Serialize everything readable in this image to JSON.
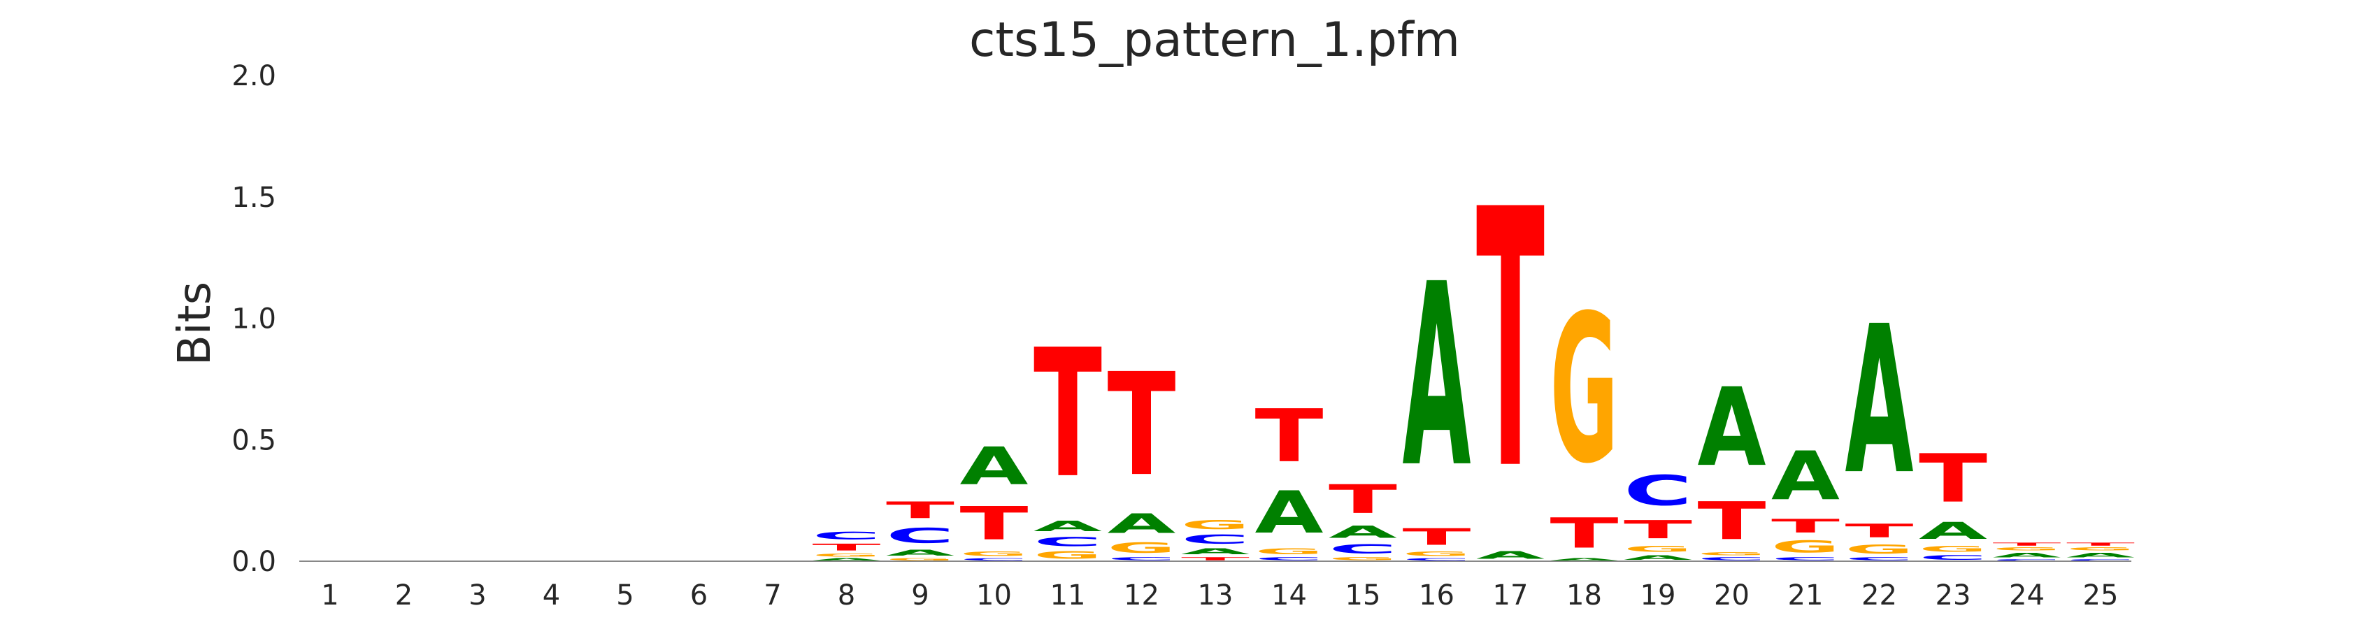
{
  "colors": {
    "A": "#008000",
    "C": "#0000ff",
    "G": "#ffa500",
    "T": "#ff0000",
    "baseline": "#888888",
    "text": "#262626"
  },
  "chart_data": {
    "type": "sequence-logo",
    "title": "cts15_pattern_1.pfm",
    "xlabel": "",
    "ylabel": "Bits",
    "ylim": [
      0,
      2.0
    ],
    "yticks": [
      "0.0",
      "0.5",
      "1.0",
      "1.5",
      "2.0"
    ],
    "grid": false,
    "legend": "none",
    "positions": [
      {
        "label": "1",
        "stack": []
      },
      {
        "label": "2",
        "stack": []
      },
      {
        "label": "3",
        "stack": []
      },
      {
        "label": "4",
        "stack": []
      },
      {
        "label": "5",
        "stack": []
      },
      {
        "label": "6",
        "stack": []
      },
      {
        "label": "7",
        "stack": []
      },
      {
        "label": "8",
        "stack": [
          {
            "base": "A",
            "bits": 0.015
          },
          {
            "base": "G",
            "bits": 0.02
          },
          {
            "base": "T",
            "bits": 0.045
          },
          {
            "base": "C",
            "bits": 0.05
          }
        ]
      },
      {
        "label": "9",
        "stack": [
          {
            "base": "G",
            "bits": 0.015
          },
          {
            "base": "A",
            "bits": 0.04
          },
          {
            "base": "C",
            "bits": 0.1
          },
          {
            "base": "T",
            "bits": 0.11
          }
        ]
      },
      {
        "label": "10",
        "stack": [
          {
            "base": "C",
            "bits": 0.015
          },
          {
            "base": "G",
            "bits": 0.03
          },
          {
            "base": "T",
            "bits": 0.22
          },
          {
            "base": "A",
            "bits": 0.25
          }
        ]
      },
      {
        "label": "11",
        "stack": [
          {
            "base": "G",
            "bits": 0.05
          },
          {
            "base": "C",
            "bits": 0.06
          },
          {
            "base": "A",
            "bits": 0.07
          },
          {
            "base": "T",
            "bits": 0.85
          }
        ]
      },
      {
        "label": "12",
        "stack": [
          {
            "base": "C",
            "bits": 0.02
          },
          {
            "base": "G",
            "bits": 0.07
          },
          {
            "base": "A",
            "bits": 0.13
          },
          {
            "base": "T",
            "bits": 0.68
          }
        ]
      },
      {
        "label": "13",
        "stack": [
          {
            "base": "T",
            "bits": 0.02
          },
          {
            "base": "A",
            "bits": 0.04
          },
          {
            "base": "C",
            "bits": 0.06
          },
          {
            "base": "G",
            "bits": 0.06
          }
        ]
      },
      {
        "label": "14",
        "stack": [
          {
            "base": "C",
            "bits": 0.02
          },
          {
            "base": "G",
            "bits": 0.04
          },
          {
            "base": "A",
            "bits": 0.28
          },
          {
            "base": "T",
            "bits": 0.35
          }
        ]
      },
      {
        "label": "15",
        "stack": [
          {
            "base": "G",
            "bits": 0.02
          },
          {
            "base": "C",
            "bits": 0.06
          },
          {
            "base": "A",
            "bits": 0.08
          },
          {
            "base": "T",
            "bits": 0.19
          }
        ]
      },
      {
        "label": "16",
        "stack": [
          {
            "base": "C",
            "bits": 0.015
          },
          {
            "base": "G",
            "bits": 0.03
          },
          {
            "base": "T",
            "bits": 0.11
          },
          {
            "base": "A",
            "bits": 1.21
          }
        ]
      },
      {
        "label": "17",
        "stack": [
          {
            "base": "A",
            "bits": 0.05
          },
          {
            "base": "T",
            "bits": 1.71
          }
        ]
      },
      {
        "label": "18",
        "stack": [
          {
            "base": "A",
            "bits": 0.015
          },
          {
            "base": "T",
            "bits": 0.2
          },
          {
            "base": "G",
            "bits": 0.98
          }
        ]
      },
      {
        "label": "19",
        "stack": [
          {
            "base": "A",
            "bits": 0.03
          },
          {
            "base": "G",
            "bits": 0.04
          },
          {
            "base": "T",
            "bits": 0.12
          },
          {
            "base": "C",
            "bits": 0.2
          }
        ]
      },
      {
        "label": "20",
        "stack": [
          {
            "base": "C",
            "bits": 0.02
          },
          {
            "base": "G",
            "bits": 0.02
          },
          {
            "base": "T",
            "bits": 0.25
          },
          {
            "base": "A",
            "bits": 0.52
          }
        ]
      },
      {
        "label": "21",
        "stack": [
          {
            "base": "C",
            "bits": 0.02
          },
          {
            "base": "G",
            "bits": 0.08
          },
          {
            "base": "T",
            "bits": 0.09
          },
          {
            "base": "A",
            "bits": 0.32
          }
        ]
      },
      {
        "label": "22",
        "stack": [
          {
            "base": "C",
            "bits": 0.02
          },
          {
            "base": "G",
            "bits": 0.06
          },
          {
            "base": "T",
            "bits": 0.09
          },
          {
            "base": "A",
            "bits": 0.98
          }
        ]
      },
      {
        "label": "23",
        "stack": [
          {
            "base": "C",
            "bits": 0.03
          },
          {
            "base": "G",
            "bits": 0.04
          },
          {
            "base": "A",
            "bits": 0.11
          },
          {
            "base": "T",
            "bits": 0.32
          }
        ]
      },
      {
        "label": "24",
        "stack": [
          {
            "base": "C",
            "bits": 0.01
          },
          {
            "base": "A",
            "bits": 0.03
          },
          {
            "base": "G",
            "bits": 0.02
          },
          {
            "base": "T",
            "bits": 0.02
          }
        ]
      },
      {
        "label": "25",
        "stack": [
          {
            "base": "C",
            "bits": 0.01
          },
          {
            "base": "A",
            "bits": 0.03
          },
          {
            "base": "G",
            "bits": 0.02
          },
          {
            "base": "T",
            "bits": 0.02
          }
        ]
      }
    ]
  }
}
